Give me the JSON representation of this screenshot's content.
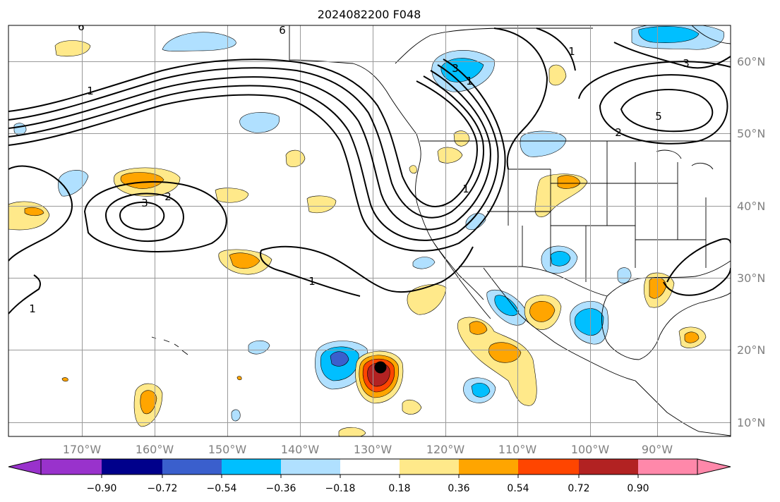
{
  "title": "2024082200 F048",
  "map": {
    "projection": "PlateCarree",
    "lon_range": [
      -180,
      -80
    ],
    "lat_range": [
      7,
      64
    ],
    "longitude_labels": [
      "170°W",
      "160°W",
      "150°W",
      "140°W",
      "130°W",
      "120°W",
      "110°W",
      "100°W",
      "90°W"
    ],
    "latitude_labels": [
      "60°N",
      "50°N",
      "40°N",
      "30°N",
      "20°N",
      "10°N"
    ],
    "gridlines": true,
    "gridline_color": "#999999",
    "contour_labels": [
      "6",
      "6",
      "3",
      "2",
      "1",
      "1",
      "3",
      "1",
      "3",
      "5",
      "2",
      "1",
      "1",
      "1"
    ],
    "marker": {
      "name": "storm-center",
      "lon": -128.9,
      "lat": 17.3,
      "color": "#000000"
    }
  },
  "colorbar": {
    "orientation": "horizontal",
    "extend": "both",
    "tick_labels": [
      "−0.90",
      "−0.72",
      "−0.54",
      "−0.36",
      "−0.18",
      "0.18",
      "0.36",
      "0.54",
      "0.72",
      "0.90"
    ],
    "colors": [
      "#9932cc",
      "#00008b",
      "#3a5fcd",
      "#00bfff",
      "#b0e0ff",
      "#ffffff",
      "#ffe98a",
      "#ffa500",
      "#ff4500",
      "#b22222",
      "#ff88aa"
    ]
  }
}
